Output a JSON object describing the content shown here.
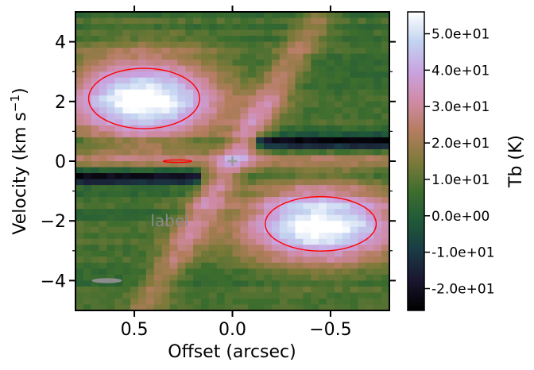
{
  "chart_data": {
    "type": "heatmap",
    "subtype": "position-velocity diagram",
    "xlabel": "Offset (arcsec)",
    "ylabel_main": "Velocity (km s",
    "ylabel_sup": "−1",
    "ylabel_close": ")",
    "xlim": [
      0.8,
      -0.8
    ],
    "ylim": [
      -5,
      5
    ],
    "xticks": [
      {
        "value": 0.5,
        "label": "0.5"
      },
      {
        "value": 0.0,
        "label": "0.0"
      },
      {
        "value": -0.5,
        "label": "−0.5"
      }
    ],
    "yticks": [
      {
        "value": 4,
        "label": "4"
      },
      {
        "value": 2,
        "label": "2"
      },
      {
        "value": 0,
        "label": "0"
      },
      {
        "value": -2,
        "label": "−2"
      },
      {
        "value": -4,
        "label": "−4"
      }
    ],
    "colorbar": {
      "label": "Tb (K)",
      "colormap": "cubehelix",
      "range": [
        -26,
        56
      ],
      "ticks": [
        {
          "value": 50,
          "label": "5.0e+01"
        },
        {
          "value": 40,
          "label": "4.0e+01"
        },
        {
          "value": 30,
          "label": "3.0e+01"
        },
        {
          "value": 20,
          "label": "2.0e+01"
        },
        {
          "value": 10,
          "label": "1.0e+01"
        },
        {
          "value": 0,
          "label": "0.0e+00"
        },
        {
          "value": -10,
          "label": "-1.0e+01"
        },
        {
          "value": -20,
          "label": "-2.0e+01"
        }
      ]
    },
    "emission_components": [
      {
        "offset": 0.45,
        "velocity": 2.1,
        "peak_K": 52,
        "width_offset": 0.28,
        "width_velocity": 1.0
      },
      {
        "offset": -0.45,
        "velocity": -2.1,
        "peak_K": 52,
        "width_offset": 0.28,
        "width_velocity": 0.9
      },
      {
        "offset": 0.0,
        "velocity": 0.0,
        "peak_K": 30,
        "note": "central diagonal ridge"
      }
    ],
    "absorption_bands": [
      {
        "velocity": 0.65,
        "offset_range": [
          -0.8,
          -0.1
        ],
        "min_K": -24
      },
      {
        "velocity": -0.55,
        "offset_range": [
          0.8,
          0.15
        ],
        "min_K": -24
      }
    ],
    "contour_level_K": 40,
    "contour_color": "#ff0000",
    "center_marker": {
      "offset": 0.0,
      "velocity": 0.0,
      "symbol": "+"
    },
    "beam_marker": {
      "offset": 0.64,
      "velocity": -4.0
    },
    "annotation": "label",
    "annotation_position": {
      "offset": 0.32,
      "velocity": -2.0
    }
  }
}
